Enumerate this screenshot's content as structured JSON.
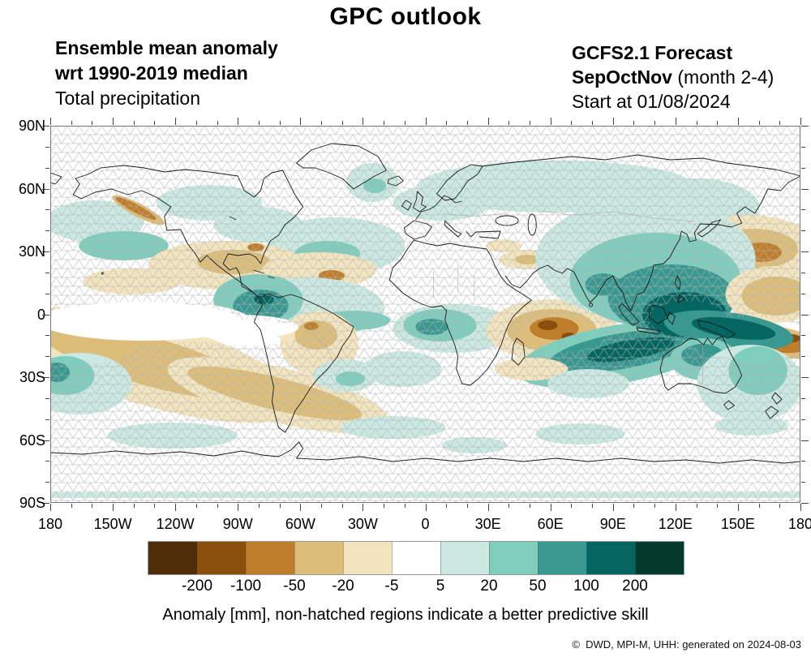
{
  "title": "GPC outlook",
  "header_left": {
    "line1": "Ensemble mean anomaly",
    "line2": "wrt 1990-2019 median",
    "line3": "Total precipitation"
  },
  "header_right": {
    "line1": "GCFS2.1 Forecast",
    "line2_bold": "SepOctNov",
    "line2_rest": " (month 2-4)",
    "line3": "Start at 01/08/2024"
  },
  "map": {
    "lat_ticks": [
      "90N",
      "60N",
      "30N",
      "0",
      "30S",
      "60S",
      "90S"
    ],
    "lon_ticks": [
      "180",
      "150W",
      "120W",
      "90W",
      "60W",
      "30W",
      "0",
      "30E",
      "60E",
      "90E",
      "120E",
      "150E",
      "180"
    ]
  },
  "colorbar": {
    "colors": [
      "#4f2d08",
      "#8a4f0b",
      "#bf7e2c",
      "#dcbe7a",
      "#f2e4be",
      "#ffffff",
      "#cbe9e1",
      "#7fcdbd",
      "#399890",
      "#056560",
      "#043a2c"
    ],
    "labels": [
      "-200",
      "-100",
      "-50",
      "-20",
      "-5",
      "5",
      "20",
      "50",
      "100",
      "200"
    ]
  },
  "caption": "Anomaly [mm], non-hatched regions indicate a better predictive skill",
  "credit": "©  DWD, MPI-M, UHH: generated on 2024-08-03"
}
